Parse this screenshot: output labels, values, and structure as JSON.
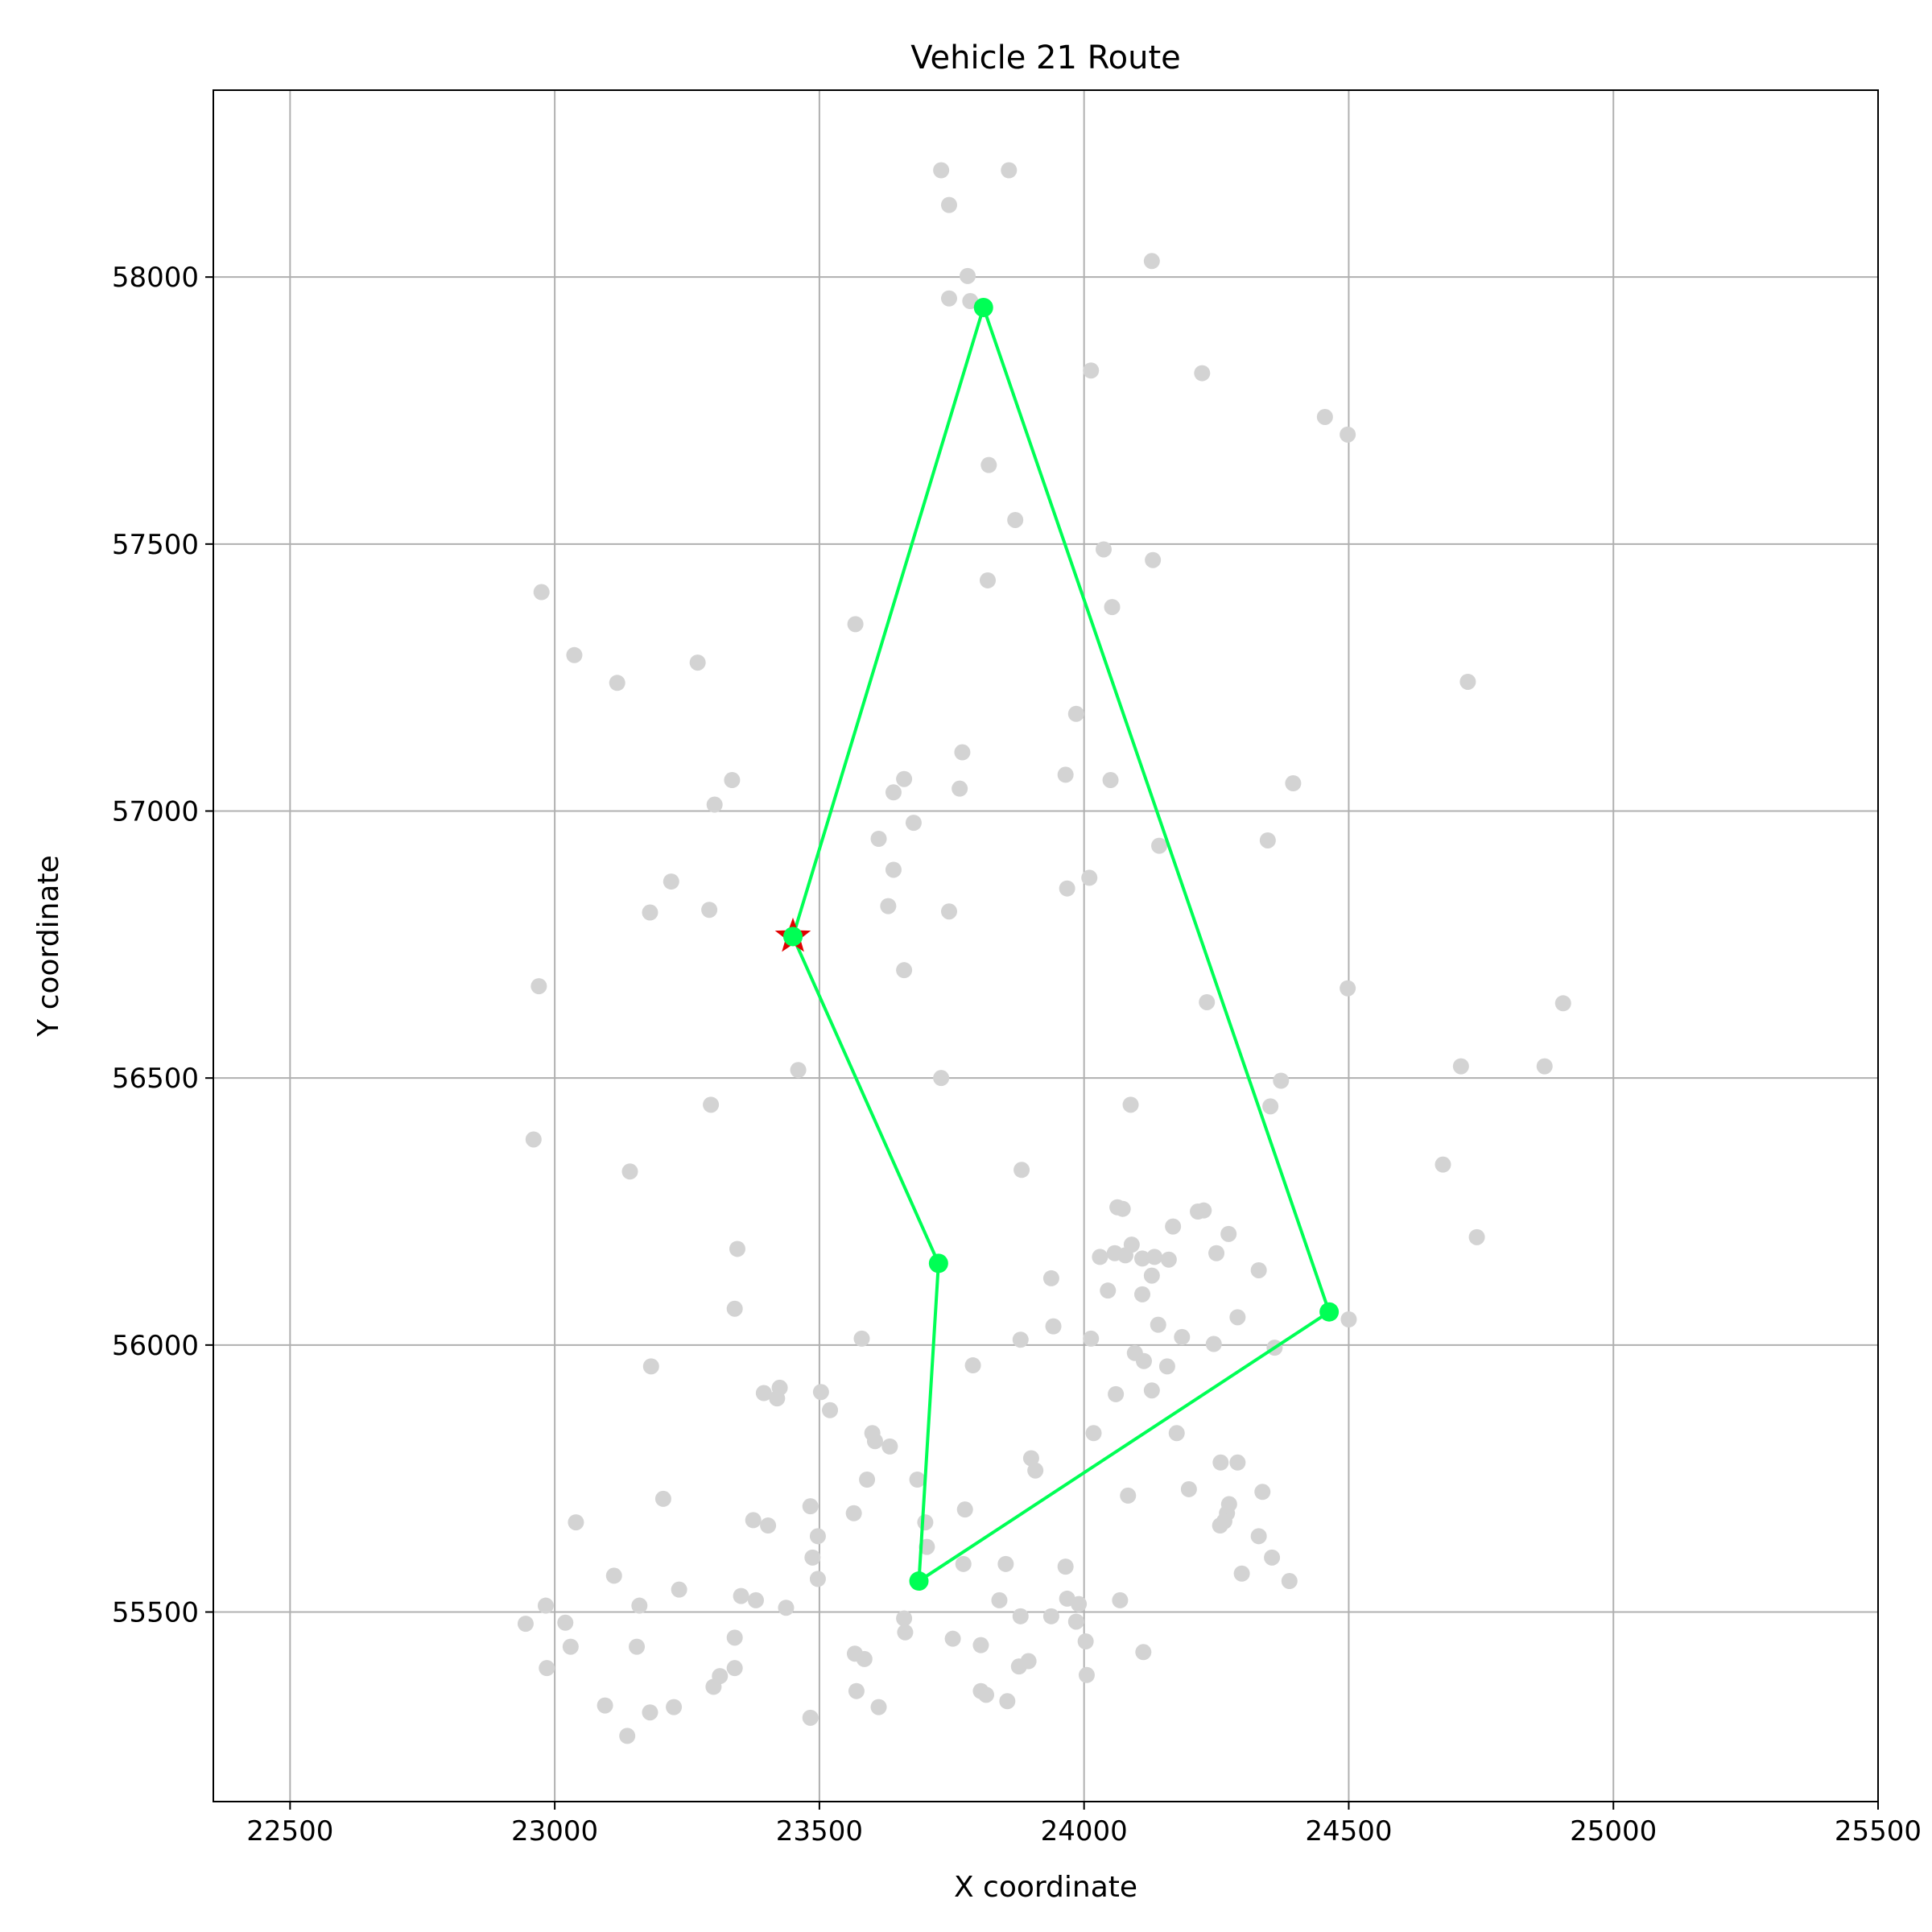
{
  "chart_data": {
    "type": "scatter",
    "title": "Vehicle 21 Route",
    "xlabel": "X coordinate",
    "ylabel": "Y coordinate",
    "xlim": [
      22355,
      25500
    ],
    "ylim": [
      55145,
      58350
    ],
    "xticks": [
      22500,
      23000,
      23500,
      24000,
      24500,
      25000,
      25500
    ],
    "yticks": [
      55500,
      56000,
      56500,
      57000,
      57500,
      58000
    ],
    "grid": true,
    "colors": {
      "background_points": "#d3d3d3",
      "route": "#00ff55",
      "depot": "#e00000"
    },
    "depot": [
      23450,
      56765
    ],
    "route": [
      [
        23450,
        56765
      ],
      [
        23810,
        57943
      ],
      [
        24463,
        56062
      ],
      [
        23688,
        55558
      ],
      [
        23725,
        56153
      ],
      [
        23450,
        56765
      ]
    ],
    "stops": [
      [
        23810,
        57943
      ],
      [
        24463,
        56062
      ],
      [
        23688,
        55558
      ],
      [
        23725,
        56153
      ],
      [
        23450,
        56765
      ]
    ],
    "background_points": [
      [
        23730,
        58200
      ],
      [
        23858,
        58200
      ],
      [
        23745,
        58135
      ],
      [
        23780,
        58002
      ],
      [
        23745,
        57960
      ],
      [
        23785,
        57955
      ],
      [
        24128,
        58030
      ],
      [
        24013,
        57825
      ],
      [
        24223,
        57820
      ],
      [
        24455,
        57738
      ],
      [
        24498,
        57705
      ],
      [
        23820,
        57648
      ],
      [
        23870,
        57545
      ],
      [
        24037,
        57490
      ],
      [
        24130,
        57470
      ],
      [
        23818,
        57432
      ],
      [
        22975,
        57410
      ],
      [
        24053,
        57382
      ],
      [
        23568,
        57350
      ],
      [
        23037,
        57292
      ],
      [
        23270,
        57278
      ],
      [
        23118,
        57240
      ],
      [
        24725,
        57242
      ],
      [
        23985,
        57182
      ],
      [
        23770,
        57110
      ],
      [
        23965,
        57068
      ],
      [
        23335,
        57058
      ],
      [
        23660,
        57060
      ],
      [
        24050,
        57058
      ],
      [
        24395,
        57052
      ],
      [
        23765,
        57042
      ],
      [
        23640,
        57035
      ],
      [
        23302,
        57012
      ],
      [
        23612,
        56948
      ],
      [
        23678,
        56978
      ],
      [
        24347,
        56945
      ],
      [
        24142,
        56935
      ],
      [
        23640,
        56890
      ],
      [
        24010,
        56875
      ],
      [
        23220,
        56868
      ],
      [
        23968,
        56855
      ],
      [
        23630,
        56822
      ],
      [
        23292,
        56815
      ],
      [
        23745,
        56812
      ],
      [
        23180,
        56810
      ],
      [
        23660,
        56702
      ],
      [
        22970,
        56672
      ],
      [
        24498,
        56668
      ],
      [
        24232,
        56642
      ],
      [
        24905,
        56640
      ],
      [
        23460,
        56515
      ],
      [
        23730,
        56500
      ],
      [
        24372,
        56495
      ],
      [
        24712,
        56522
      ],
      [
        24870,
        56522
      ],
      [
        23295,
        56450
      ],
      [
        24088,
        56450
      ],
      [
        24352,
        56447
      ],
      [
        22960,
        56385
      ],
      [
        23142,
        56325
      ],
      [
        23882,
        56328
      ],
      [
        24678,
        56338
      ],
      [
        24063,
        56258
      ],
      [
        24073,
        56255
      ],
      [
        24215,
        56250
      ],
      [
        24226,
        56252
      ],
      [
        24168,
        56222
      ],
      [
        24273,
        56208
      ],
      [
        24742,
        56202
      ],
      [
        24090,
        56188
      ],
      [
        23345,
        56180
      ],
      [
        24058,
        56172
      ],
      [
        24078,
        56168
      ],
      [
        24250,
        56172
      ],
      [
        24030,
        56165
      ],
      [
        24110,
        56162
      ],
      [
        24133,
        56165
      ],
      [
        24160,
        56160
      ],
      [
        24330,
        56140
      ],
      [
        24128,
        56130
      ],
      [
        23938,
        56125
      ],
      [
        24045,
        56102
      ],
      [
        24110,
        56095
      ],
      [
        23340,
        56068
      ],
      [
        24290,
        56052
      ],
      [
        24500,
        56048
      ],
      [
        24140,
        56038
      ],
      [
        23942,
        56035
      ],
      [
        23580,
        56012
      ],
      [
        23880,
        56010
      ],
      [
        24013,
        56012
      ],
      [
        24185,
        56015
      ],
      [
        24245,
        56002
      ],
      [
        24360,
        55995
      ],
      [
        24096,
        55985
      ],
      [
        24113,
        55970
      ],
      [
        23790,
        55962
      ],
      [
        23182,
        55960
      ],
      [
        24157,
        55960
      ],
      [
        23425,
        55920
      ],
      [
        23395,
        55910
      ],
      [
        23503,
        55912
      ],
      [
        23420,
        55900
      ],
      [
        24060,
        55908
      ],
      [
        24128,
        55915
      ],
      [
        23520,
        55878
      ],
      [
        23600,
        55835
      ],
      [
        23605,
        55820
      ],
      [
        24018,
        55835
      ],
      [
        24175,
        55835
      ],
      [
        23633,
        55810
      ],
      [
        23900,
        55788
      ],
      [
        23908,
        55765
      ],
      [
        24258,
        55780
      ],
      [
        24290,
        55780
      ],
      [
        23590,
        55748
      ],
      [
        23685,
        55748
      ],
      [
        24198,
        55730
      ],
      [
        24337,
        55725
      ],
      [
        23205,
        55712
      ],
      [
        24083,
        55718
      ],
      [
        23483,
        55698
      ],
      [
        24274,
        55702
      ],
      [
        23775,
        55692
      ],
      [
        23565,
        55685
      ],
      [
        24270,
        55685
      ],
      [
        23375,
        55672
      ],
      [
        23700,
        55668
      ],
      [
        23040,
        55668
      ],
      [
        23403,
        55662
      ],
      [
        24265,
        55670
      ],
      [
        24257,
        55662
      ],
      [
        23497,
        55642
      ],
      [
        24330,
        55642
      ],
      [
        23703,
        55622
      ],
      [
        23487,
        55602
      ],
      [
        24355,
        55602
      ],
      [
        23772,
        55590
      ],
      [
        23852,
        55590
      ],
      [
        23965,
        55585
      ],
      [
        23497,
        55562
      ],
      [
        23112,
        55568
      ],
      [
        24298,
        55572
      ],
      [
        24388,
        55558
      ],
      [
        23235,
        55542
      ],
      [
        23352,
        55530
      ],
      [
        23380,
        55522
      ],
      [
        23840,
        55522
      ],
      [
        23968,
        55525
      ],
      [
        23990,
        55515
      ],
      [
        24068,
        55522
      ],
      [
        23160,
        55512
      ],
      [
        22983,
        55512
      ],
      [
        23437,
        55508
      ],
      [
        23660,
        55488
      ],
      [
        23880,
        55492
      ],
      [
        23938,
        55492
      ],
      [
        23985,
        55482
      ],
      [
        22945,
        55478
      ],
      [
        23020,
        55480
      ],
      [
        23340,
        55452
      ],
      [
        23752,
        55450
      ],
      [
        23662,
        55462
      ],
      [
        24003,
        55445
      ],
      [
        23805,
        55438
      ],
      [
        23155,
        55435
      ],
      [
        23030,
        55435
      ],
      [
        24112,
        55425
      ],
      [
        23567,
        55422
      ],
      [
        23585,
        55412
      ],
      [
        23895,
        55408
      ],
      [
        23877,
        55398
      ],
      [
        22985,
        55395
      ],
      [
        23340,
        55395
      ],
      [
        23312,
        55380
      ],
      [
        24005,
        55382
      ],
      [
        23300,
        55360
      ],
      [
        23570,
        55352
      ],
      [
        23805,
        55352
      ],
      [
        23815,
        55345
      ],
      [
        23855,
        55333
      ],
      [
        23095,
        55325
      ],
      [
        23225,
        55322
      ],
      [
        23612,
        55322
      ],
      [
        23180,
        55312
      ],
      [
        23483,
        55302
      ],
      [
        23137,
        55268
      ]
    ]
  }
}
